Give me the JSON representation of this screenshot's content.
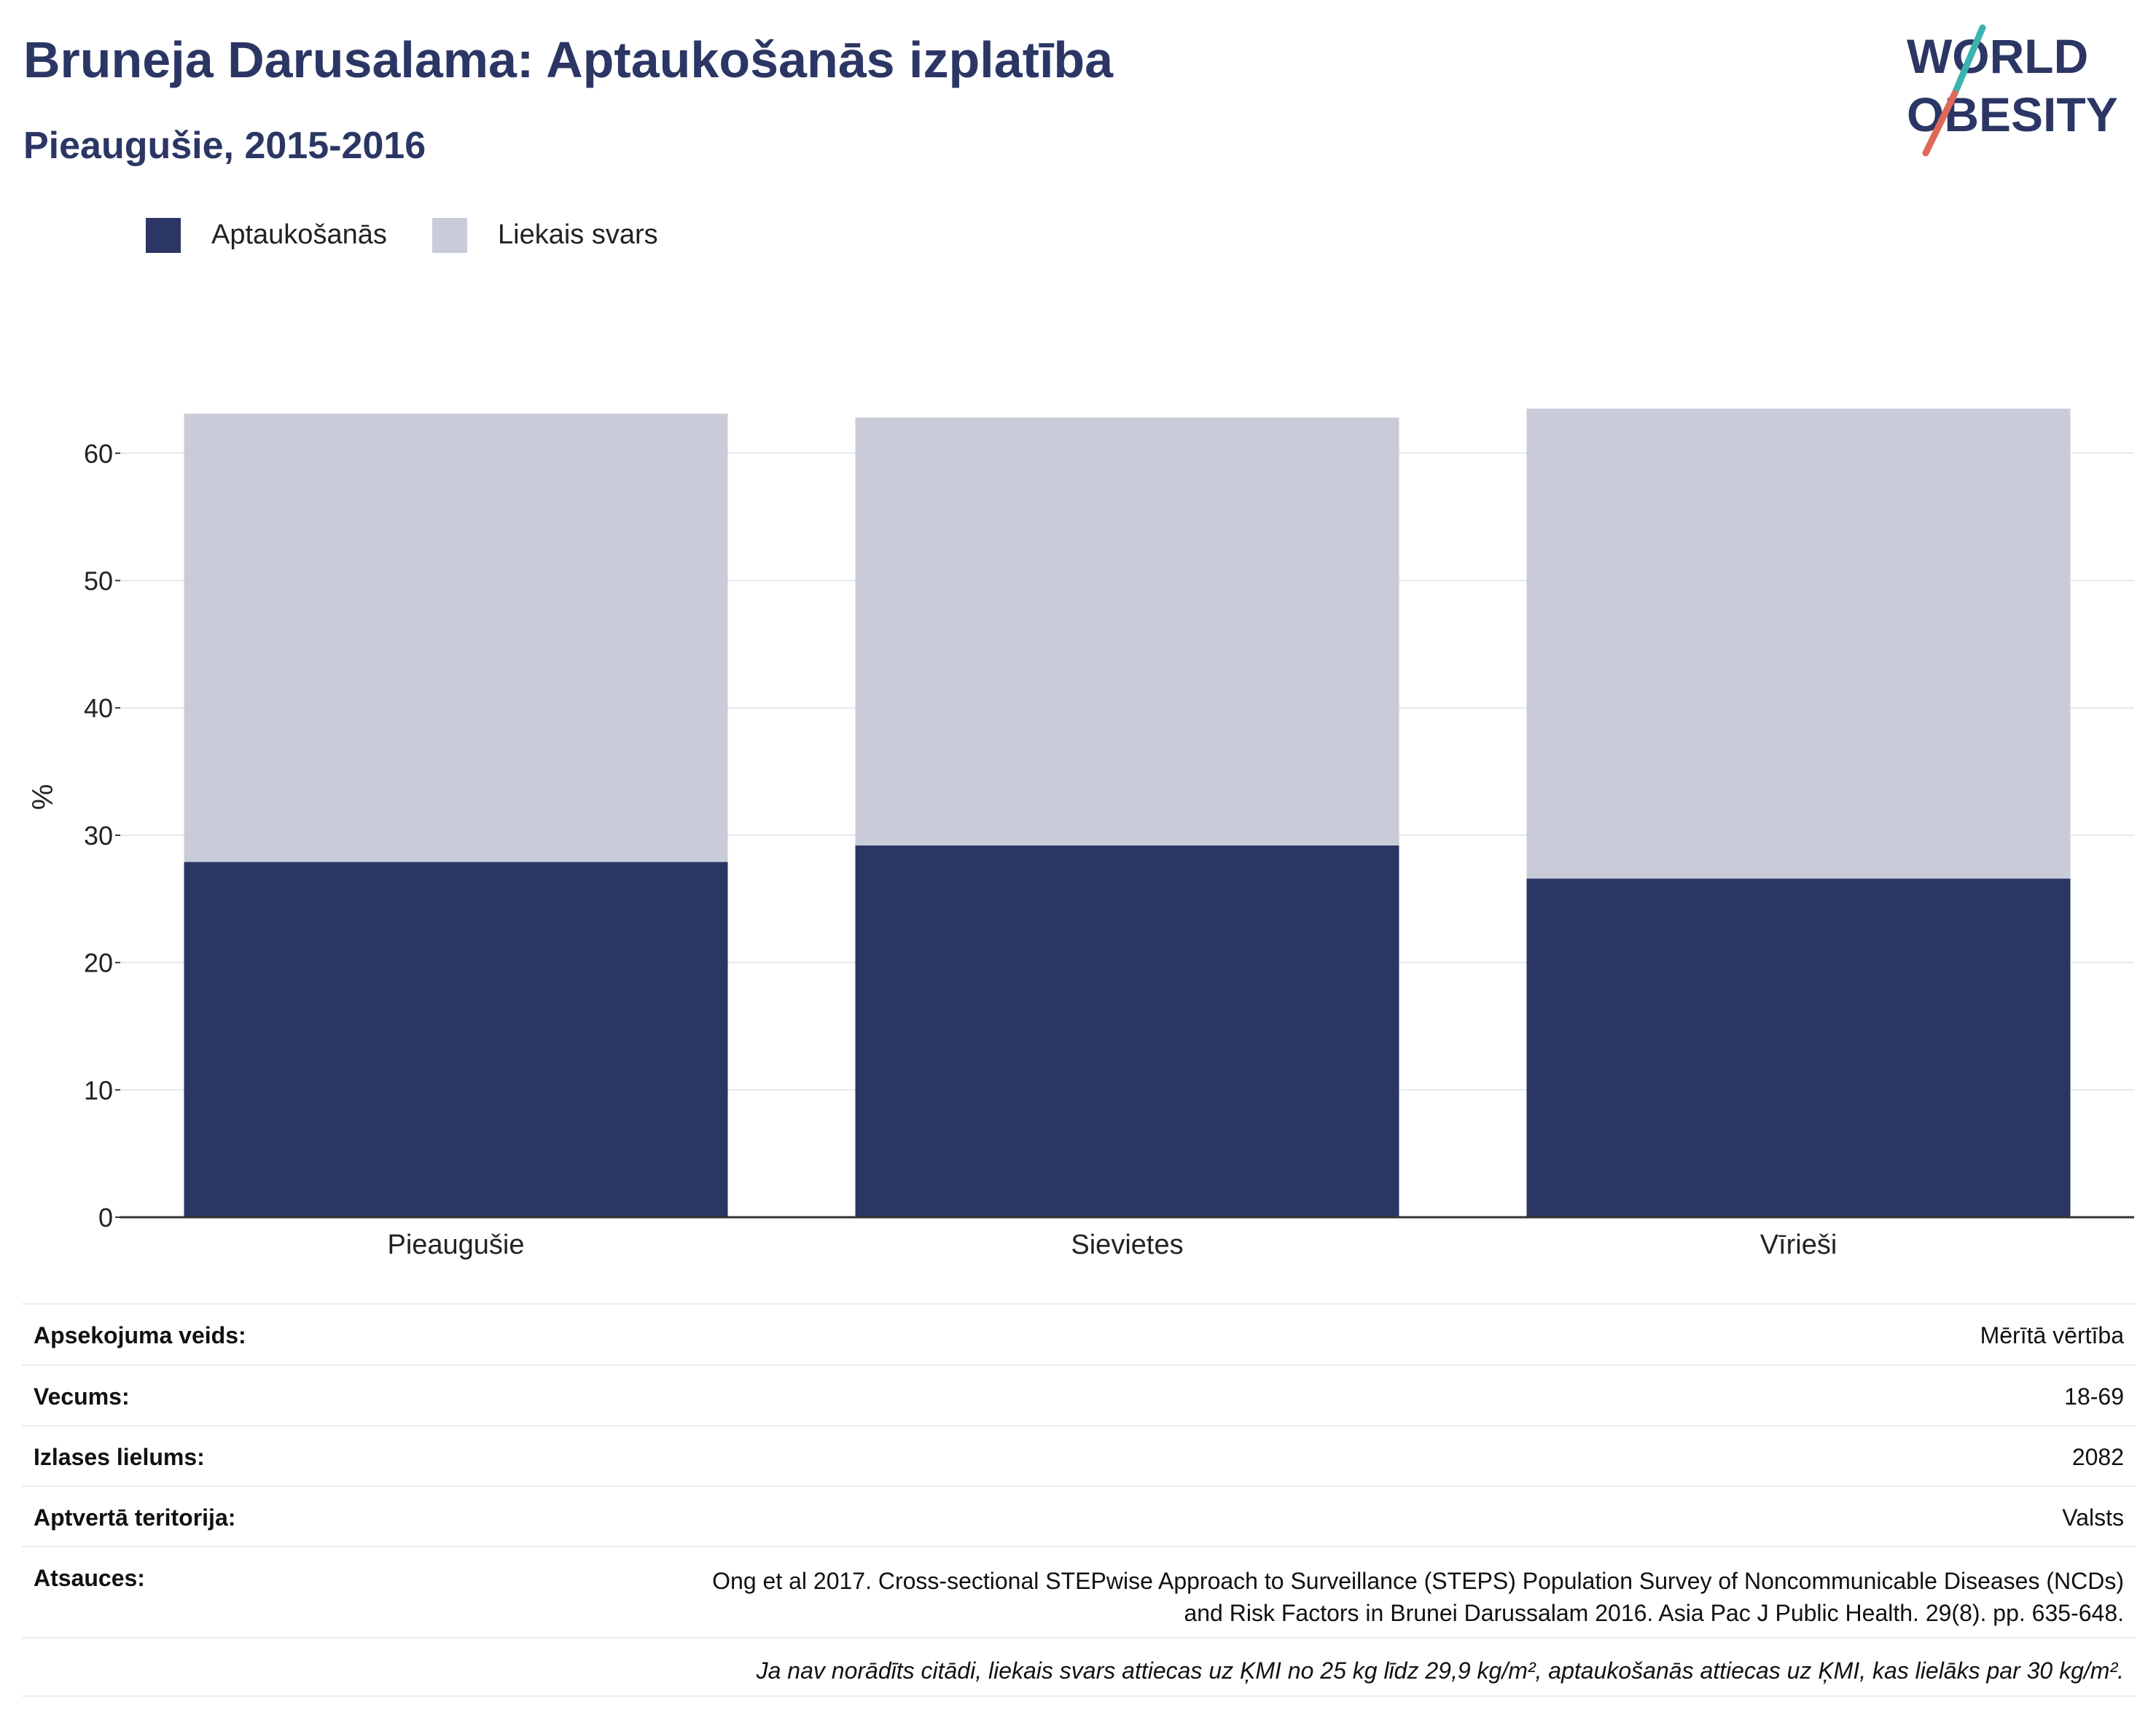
{
  "title": "Bruneja Darusalama: Aptaukošanās izplatība",
  "subtitle": "Pieaugušie, 2015-2016",
  "logo": {
    "line1": "WORLD",
    "line2": "OBESITY",
    "colors": {
      "text": "#2b3664",
      "teal": "#3bb3b0",
      "coral": "#e0675a"
    }
  },
  "colors": {
    "obesity": "#2b3664",
    "overweight": "#c9ccd8",
    "grid": "#e6e8ee",
    "axis": "#333333"
  },
  "legend": [
    {
      "label": "Aptaukošanās",
      "color": "#2b3664"
    },
    {
      "label": "Liekais svars",
      "color": "#c9ccd8"
    }
  ],
  "chart_data": {
    "type": "bar",
    "stacked": true,
    "categories": [
      "Pieaugušie",
      "Sievietes",
      "Vīrieši"
    ],
    "series": [
      {
        "name": "Aptaukošanās",
        "values": [
          27.9,
          29.2,
          26.6
        ]
      },
      {
        "name": "Liekais svars",
        "values": [
          35.2,
          33.6,
          36.9
        ]
      }
    ],
    "ylabel": "%",
    "ylim": [
      0,
      66
    ],
    "yticks": [
      0,
      10,
      20,
      30,
      40,
      50,
      60
    ],
    "grid": true,
    "legend_position": "top-left"
  },
  "meta": [
    {
      "key": "Apsekojuma veids:",
      "value": "Mērītā vērtība"
    },
    {
      "key": "Vecums:",
      "value": "18-69"
    },
    {
      "key": "Izlases lielums:",
      "value": "2082"
    },
    {
      "key": "Aptvertā teritorija:",
      "value": "Valsts"
    }
  ],
  "references": {
    "key": "Atsauces:",
    "line1": "Ong et al 2017. Cross-sectional STEPwise Approach to Surveillance (STEPS) Population Survey of Noncommunicable Diseases (NCDs)",
    "line2": "and Risk Factors in Brunei Darussalam 2016. Asia Pac J Public Health. 29(8). pp. 635-648."
  },
  "note": "Ja nav norādīts citādi, liekais svars attiecas uz ĶMI no 25 kg līdz 29,9 kg/m², aptaukošanās attiecas uz ĶMI, kas lielāks par 30 kg/m²."
}
